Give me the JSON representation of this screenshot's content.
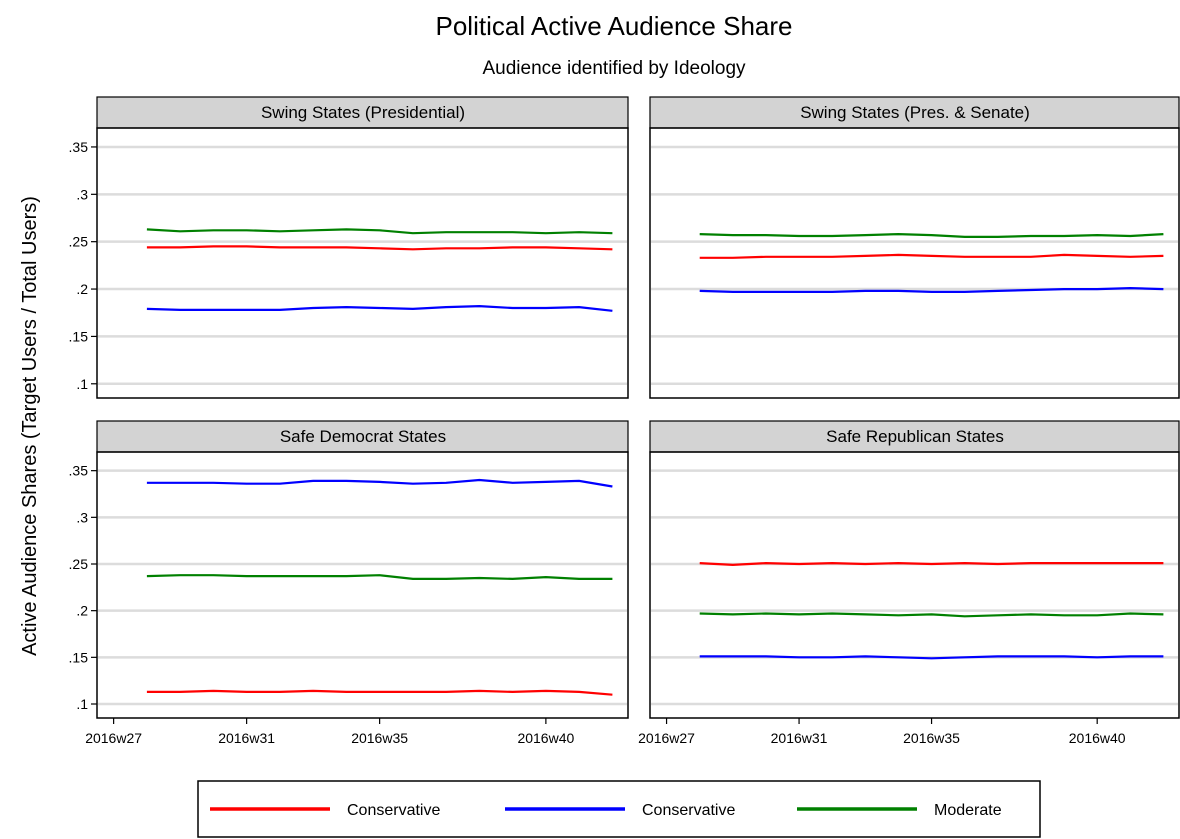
{
  "chart_data": {
    "type": "line",
    "title": "Political Active Audience Share",
    "subtitle": "Audience identified by Ideology",
    "ylabel": "Active Audience Shares (Target Users / Total Users)",
    "ylim": [
      0.085,
      0.37
    ],
    "yticks": [
      0.1,
      0.15,
      0.2,
      0.25,
      0.3,
      0.35
    ],
    "ytick_labels": [
      ".1",
      ".15",
      ".2",
      ".25",
      ".3",
      ".35"
    ],
    "xlim": [
      26.5,
      42.5
    ],
    "xticks": [
      27,
      31,
      35,
      40
    ],
    "xtick_labels": [
      "2016w27",
      "2016w31",
      "2016w35",
      "2016w40"
    ],
    "x": [
      28,
      29,
      30,
      31,
      32,
      33,
      34,
      35,
      36,
      37,
      38,
      39,
      40,
      41,
      42
    ],
    "grid": true,
    "legend": {
      "position": "bottom",
      "entries": [
        {
          "label": "Conservative",
          "color": "#ff0000"
        },
        {
          "label": "Conservative",
          "color": "#0000ff"
        },
        {
          "label": "Moderate",
          "color": "#008000"
        }
      ]
    },
    "panels": [
      {
        "title": "Swing States (Presidential)",
        "series": [
          {
            "color": "#ff0000",
            "values": [
              0.244,
              0.244,
              0.245,
              0.245,
              0.244,
              0.244,
              0.244,
              0.243,
              0.242,
              0.243,
              0.243,
              0.244,
              0.244,
              0.243,
              0.242
            ]
          },
          {
            "color": "#0000ff",
            "values": [
              0.179,
              0.178,
              0.178,
              0.178,
              0.178,
              0.18,
              0.181,
              0.18,
              0.179,
              0.181,
              0.182,
              0.18,
              0.18,
              0.181,
              0.177
            ]
          },
          {
            "color": "#008000",
            "values": [
              0.263,
              0.261,
              0.262,
              0.262,
              0.261,
              0.262,
              0.263,
              0.262,
              0.259,
              0.26,
              0.26,
              0.26,
              0.259,
              0.26,
              0.259
            ]
          }
        ]
      },
      {
        "title": "Swing States (Pres. & Senate)",
        "series": [
          {
            "color": "#ff0000",
            "values": [
              0.233,
              0.233,
              0.234,
              0.234,
              0.234,
              0.235,
              0.236,
              0.235,
              0.234,
              0.234,
              0.234,
              0.236,
              0.235,
              0.234,
              0.235
            ]
          },
          {
            "color": "#0000ff",
            "values": [
              0.198,
              0.197,
              0.197,
              0.197,
              0.197,
              0.198,
              0.198,
              0.197,
              0.197,
              0.198,
              0.199,
              0.2,
              0.2,
              0.201,
              0.2
            ]
          },
          {
            "color": "#008000",
            "values": [
              0.258,
              0.257,
              0.257,
              0.256,
              0.256,
              0.257,
              0.258,
              0.257,
              0.255,
              0.255,
              0.256,
              0.256,
              0.257,
              0.256,
              0.258
            ]
          }
        ]
      },
      {
        "title": "Safe Democrat States",
        "series": [
          {
            "color": "#ff0000",
            "values": [
              0.113,
              0.113,
              0.114,
              0.113,
              0.113,
              0.114,
              0.113,
              0.113,
              0.113,
              0.113,
              0.114,
              0.113,
              0.114,
              0.113,
              0.11
            ]
          },
          {
            "color": "#0000ff",
            "values": [
              0.337,
              0.337,
              0.337,
              0.336,
              0.336,
              0.339,
              0.339,
              0.338,
              0.336,
              0.337,
              0.34,
              0.337,
              0.338,
              0.339,
              0.333
            ]
          },
          {
            "color": "#008000",
            "values": [
              0.237,
              0.238,
              0.238,
              0.237,
              0.237,
              0.237,
              0.237,
              0.238,
              0.234,
              0.234,
              0.235,
              0.234,
              0.236,
              0.234,
              0.234
            ]
          }
        ]
      },
      {
        "title": "Safe Republican States",
        "series": [
          {
            "color": "#ff0000",
            "values": [
              0.251,
              0.249,
              0.251,
              0.25,
              0.251,
              0.25,
              0.251,
              0.25,
              0.251,
              0.25,
              0.251,
              0.251,
              0.251,
              0.251,
              0.251
            ]
          },
          {
            "color": "#0000ff",
            "values": [
              0.151,
              0.151,
              0.151,
              0.15,
              0.15,
              0.151,
              0.15,
              0.149,
              0.15,
              0.151,
              0.151,
              0.151,
              0.15,
              0.151,
              0.151
            ]
          },
          {
            "color": "#008000",
            "values": [
              0.197,
              0.196,
              0.197,
              0.196,
              0.197,
              0.196,
              0.195,
              0.196,
              0.194,
              0.195,
              0.196,
              0.195,
              0.195,
              0.197,
              0.196
            ]
          }
        ]
      }
    ]
  }
}
